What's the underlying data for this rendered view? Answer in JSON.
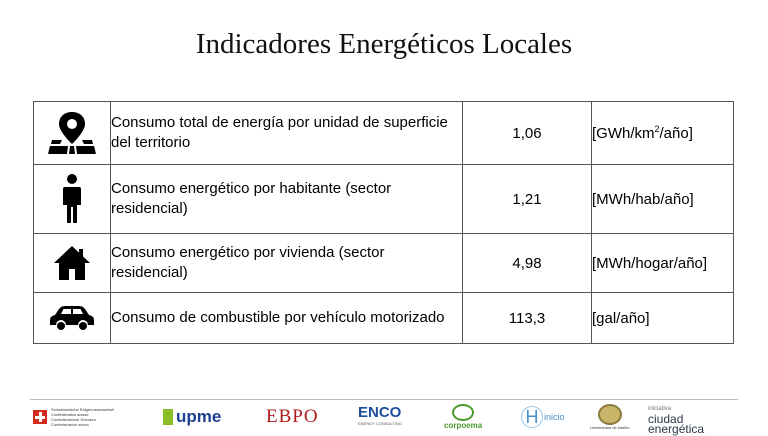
{
  "title": "Indicadores Energéticos Locales",
  "table": {
    "rows": [
      {
        "icon": "map-location-icon",
        "description": "Consumo total de energía por unidad de superficie del territorio",
        "value": "1,06",
        "unit_before_sup": "[GWh/km",
        "unit_sup": "2",
        "unit_after_sup": "/año]"
      },
      {
        "icon": "person-icon",
        "description": "Consumo energético por habitante (sector residencial)",
        "value": "1,21",
        "unit": "[MWh/hab/año]"
      },
      {
        "icon": "house-icon",
        "description": "Consumo energético por vivienda (sector residencial)",
        "value": "4,98",
        "unit": "[MWh/hogar/año]"
      },
      {
        "icon": "car-icon",
        "description": "Consumo de combustible por vehículo motorizado",
        "value": "113,3",
        "unit": "[gal/año]"
      }
    ]
  },
  "footer": {
    "swiss_lines": [
      "Schweizerische Eidgenossenschaft",
      "Confédération suisse",
      "Confederazione Svizzera",
      "Confederaziun svizra"
    ],
    "upme": "upme",
    "ebp": "EBPO",
    "enco": "ENCO",
    "enco_sub": "ENERGY CONSULTING",
    "corpoema": "corpoema",
    "hinicio_h": "H",
    "hinicio": "inicio",
    "unal": "Universidad de Nariño",
    "ciudad_small": "iniciativa",
    "ciudad_big1": "ciudad",
    "ciudad_big2": "energética"
  }
}
